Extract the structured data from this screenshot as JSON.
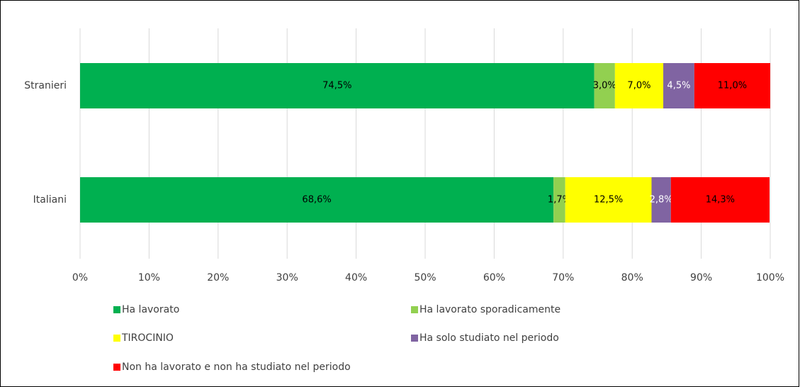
{
  "chart_data": {
    "type": "stacked-bar-horizontal",
    "categories": [
      "Stranieri",
      "Italiani"
    ],
    "series": [
      {
        "name": "Ha lavorato",
        "color": "#00b050",
        "label_color": "#000000",
        "values": [
          74.5,
          68.6
        ],
        "value_labels": [
          "74,5%",
          "68,6%"
        ]
      },
      {
        "name": "Ha lavorato sporadicamente",
        "color": "#92d050",
        "label_color": "#000000",
        "values": [
          3.0,
          1.7
        ],
        "value_labels": [
          "3,0%",
          "1,7%"
        ]
      },
      {
        "name": "TIROCINIO",
        "color": "#ffff00",
        "label_color": "#000000",
        "values": [
          7.0,
          12.5
        ],
        "value_labels": [
          "7,0%",
          "12,5%"
        ]
      },
      {
        "name": "Ha solo studiato nel periodo",
        "color": "#8064a2",
        "label_color": "#ffffff",
        "values": [
          4.5,
          2.8
        ],
        "value_labels": [
          "4,5%",
          "2,8%"
        ]
      },
      {
        "name": "Non ha lavorato e non ha studiato nel periodo",
        "color": "#ff0000",
        "label_color": "#000000",
        "values": [
          11.0,
          14.3
        ],
        "value_labels": [
          "11,0%",
          "14,3%"
        ]
      }
    ],
    "xlim": [
      0,
      100
    ],
    "xticks": [
      {
        "value": 0,
        "label": "0%"
      },
      {
        "value": 10,
        "label": "10%"
      },
      {
        "value": 20,
        "label": "20%"
      },
      {
        "value": 30,
        "label": "30%"
      },
      {
        "value": 40,
        "label": "40%"
      },
      {
        "value": 50,
        "label": "50%"
      },
      {
        "value": 60,
        "label": "60%"
      },
      {
        "value": 70,
        "label": "70%"
      },
      {
        "value": 80,
        "label": "80%"
      },
      {
        "value": 90,
        "label": "90%"
      },
      {
        "value": 100,
        "label": "100%"
      }
    ],
    "grid": true,
    "legend": "bottom"
  }
}
